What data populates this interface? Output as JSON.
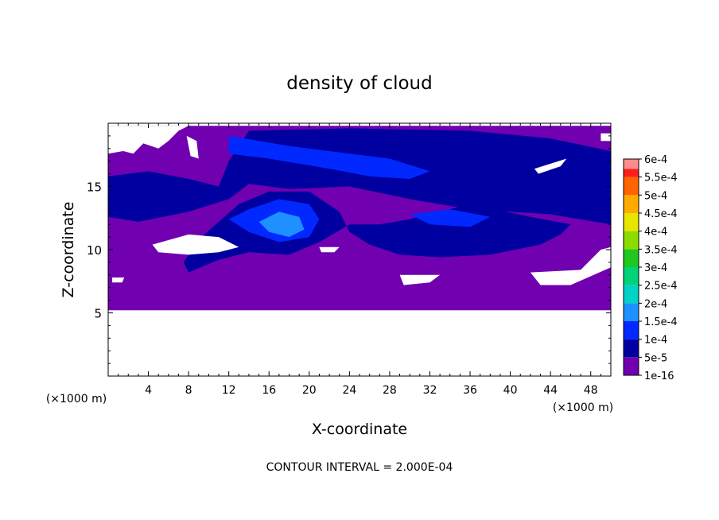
{
  "chart_data": {
    "type": "heatmap",
    "title": "density of cloud",
    "xlabel": "X-coordinate",
    "ylabel": "Z-coordinate",
    "x_unit_left": "(×1000 m)",
    "x_unit_right": "(×1000 m)",
    "footer": "CONTOUR INTERVAL = 2.000E-04",
    "xlim": [
      0,
      50
    ],
    "ylim": [
      0,
      20
    ],
    "xticks": [
      "4",
      "8",
      "12",
      "16",
      "20",
      "24",
      "28",
      "32",
      "36",
      "40",
      "44",
      "48"
    ],
    "yticks": [
      "5",
      "10",
      "15"
    ],
    "colorbar": {
      "labels": [
        "1e-16",
        "5e-5",
        "1e-4",
        "1.5e-4",
        "2e-4",
        "2.5e-4",
        "3e-4",
        "3.5e-4",
        "4e-4",
        "4.5e-4",
        "5e-4",
        "5.5e-4",
        "6e-4"
      ],
      "colors": [
        "#7000b0",
        "#0000a0",
        "#0028ff",
        "#1e90ff",
        "#00d2c8",
        "#00d278",
        "#1ec81e",
        "#8cdc00",
        "#e6e600",
        "#ffaa00",
        "#ff6400",
        "#ff1e1e",
        "#ff8c8c"
      ]
    },
    "regions": {
      "cloud_layer": [
        [
          0,
          5.2
        ],
        [
          50,
          5.2
        ],
        [
          50,
          19.8
        ],
        [
          0,
          19.8
        ]
      ],
      "blue_upper": [
        [
          0,
          15.8
        ],
        [
          4,
          16.2
        ],
        [
          8,
          15.6
        ],
        [
          11,
          15.0
        ],
        [
          12,
          17.0
        ],
        [
          14,
          19.4
        ],
        [
          24,
          19.6
        ],
        [
          36,
          19.4
        ],
        [
          44,
          18.8
        ],
        [
          50,
          17.8
        ],
        [
          50,
          12.0
        ],
        [
          44,
          12.8
        ],
        [
          36,
          13.2
        ],
        [
          30,
          14.0
        ],
        [
          24,
          15.0
        ],
        [
          18,
          14.8
        ],
        [
          14,
          15.2
        ],
        [
          12,
          14.0
        ],
        [
          8,
          13.0
        ],
        [
          3,
          12.2
        ],
        [
          0,
          12.6
        ]
      ],
      "blue_mid": [
        [
          11,
          12.2
        ],
        [
          13,
          13.6
        ],
        [
          16,
          14.6
        ],
        [
          20,
          14.6
        ],
        [
          23,
          13.0
        ],
        [
          24,
          11.4
        ],
        [
          26,
          10.4
        ],
        [
          29,
          9.6
        ],
        [
          33,
          9.4
        ],
        [
          38,
          9.6
        ],
        [
          43,
          10.4
        ],
        [
          45,
          11.2
        ],
        [
          46,
          12.0
        ],
        [
          42,
          12.6
        ],
        [
          36,
          13.6
        ],
        [
          33,
          13.0
        ],
        [
          30,
          12.4
        ],
        [
          27,
          12.0
        ],
        [
          24,
          12.0
        ],
        [
          21,
          10.6
        ],
        [
          18,
          9.6
        ],
        [
          14,
          9.8
        ],
        [
          11,
          9.2
        ],
        [
          8,
          8.2
        ],
        [
          7.5,
          9.0
        ],
        [
          9,
          10.8
        ]
      ],
      "blue_light_upper": [
        [
          12,
          19.0
        ],
        [
          18,
          18.2
        ],
        [
          24,
          17.6
        ],
        [
          28,
          17.2
        ],
        [
          32,
          16.2
        ],
        [
          30,
          15.6
        ],
        [
          26,
          15.8
        ],
        [
          22,
          16.4
        ],
        [
          16,
          17.2
        ],
        [
          12,
          17.6
        ]
      ],
      "blue_light_mid": [
        [
          12,
          12.4
        ],
        [
          14,
          13.2
        ],
        [
          17,
          14.0
        ],
        [
          20,
          13.6
        ],
        [
          21,
          12.4
        ],
        [
          20,
          11.0
        ],
        [
          17,
          10.6
        ],
        [
          14,
          11.4
        ]
      ],
      "blue_light_right": [
        [
          30,
          12.8
        ],
        [
          34,
          13.2
        ],
        [
          38,
          12.6
        ],
        [
          36,
          11.8
        ],
        [
          32,
          12.0
        ]
      ],
      "cyan_core": [
        [
          15,
          12.2
        ],
        [
          17,
          13.0
        ],
        [
          19,
          12.6
        ],
        [
          19.5,
          11.6
        ],
        [
          18,
          11.0
        ],
        [
          16,
          11.4
        ]
      ],
      "white_gaps": [
        [
          [
            0,
            19.8
          ],
          [
            8,
            19.8
          ],
          [
            7,
            19.4
          ],
          [
            6,
            18.6
          ],
          [
            5,
            18.0
          ],
          [
            3.5,
            18.4
          ],
          [
            2.5,
            17.6
          ],
          [
            1.5,
            17.8
          ],
          [
            0,
            17.6
          ]
        ],
        [
          [
            7.8,
            19.0
          ],
          [
            8.8,
            18.6
          ],
          [
            9,
            17.2
          ],
          [
            8.2,
            17.4
          ]
        ],
        [
          [
            4.4,
            10.4
          ],
          [
            8,
            11.2
          ],
          [
            11,
            11.0
          ],
          [
            13,
            10.2
          ],
          [
            11,
            9.8
          ],
          [
            8,
            9.6
          ],
          [
            5,
            9.8
          ]
        ],
        [
          [
            21,
            10.2
          ],
          [
            23,
            10.2
          ],
          [
            22.5,
            9.8
          ],
          [
            21.2,
            9.8
          ]
        ],
        [
          [
            29,
            8.0
          ],
          [
            33,
            8.0
          ],
          [
            32,
            7.4
          ],
          [
            29.4,
            7.2
          ]
        ],
        [
          [
            42,
            8.2
          ],
          [
            47,
            8.4
          ],
          [
            49,
            10.0
          ],
          [
            50,
            10.2
          ],
          [
            50,
            8.6
          ],
          [
            46,
            7.2
          ],
          [
            43,
            7.2
          ]
        ],
        [
          [
            0.4,
            7.8
          ],
          [
            1.6,
            7.8
          ],
          [
            1.4,
            7.4
          ],
          [
            0.4,
            7.4
          ]
        ],
        [
          [
            49,
            19.2
          ],
          [
            50,
            19.2
          ],
          [
            50,
            18.6
          ],
          [
            49,
            18.6
          ]
        ],
        [
          [
            42.4,
            16.4
          ],
          [
            45.6,
            17.2
          ],
          [
            45,
            16.6
          ],
          [
            42.8,
            16.0
          ]
        ]
      ]
    }
  }
}
